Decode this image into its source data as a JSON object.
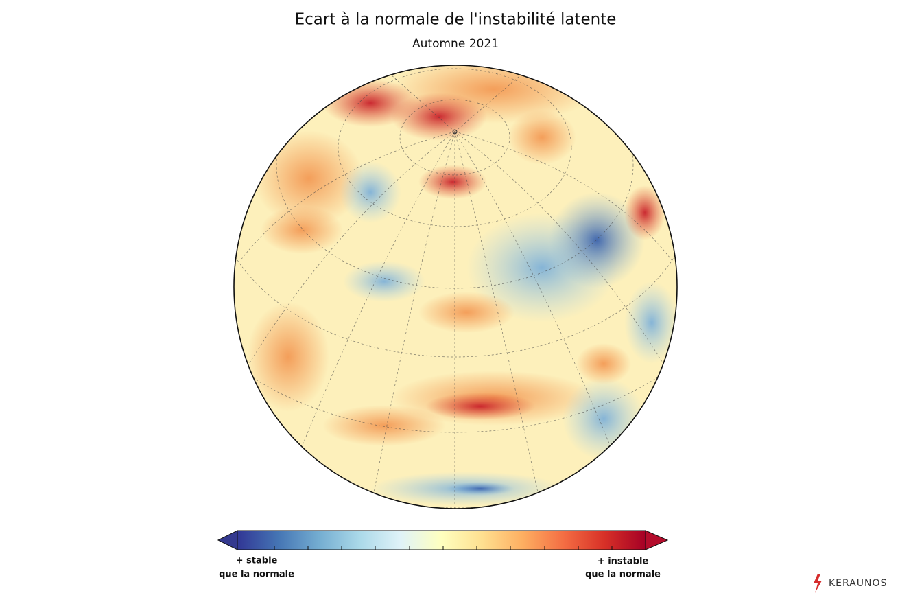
{
  "header": {
    "title": "Ecart à la normale de l'instabilité latente",
    "subtitle": "Automne 2021"
  },
  "colorbar": {
    "low_label": [
      "+ stable",
      "que la normale"
    ],
    "high_label": [
      "+ instable",
      "que la normale"
    ]
  },
  "logo": "KERAUNOS"
}
